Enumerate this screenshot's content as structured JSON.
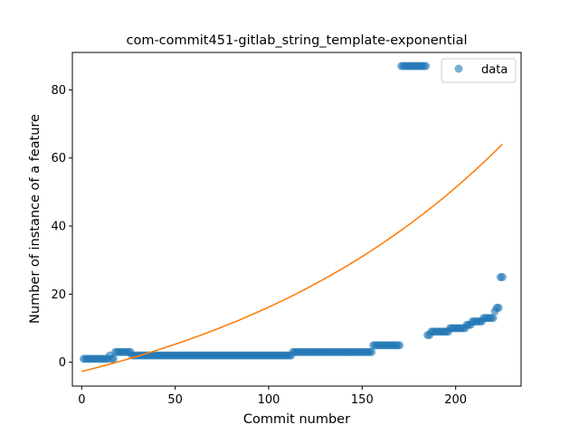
{
  "chart_data": {
    "type": "scatter",
    "title": "com-commit451-gitlab_string_template-exponential",
    "xlabel": "Commit number",
    "ylabel": "Number of instance of a feature",
    "xlim": [
      -5,
      235
    ],
    "ylim": [
      -7,
      91
    ],
    "xticks": [
      0,
      50,
      100,
      150,
      200
    ],
    "yticks": [
      0,
      20,
      40,
      60,
      80
    ],
    "grid": false,
    "legend": {
      "position": "top-right",
      "entries": [
        "data"
      ]
    },
    "colors": {
      "data": "#1f77b4",
      "fit": "#ff7f0e"
    },
    "series": [
      {
        "name": "data",
        "kind": "scatter",
        "segments": [
          {
            "x_from": 1,
            "x_to": 14,
            "y": 1
          },
          {
            "x_from": 15,
            "x_to": 15,
            "y": 2
          },
          {
            "x_from": 16,
            "x_to": 17,
            "y": 1
          },
          {
            "x_from": 18,
            "x_to": 26,
            "y": 3
          },
          {
            "x_from": 27,
            "x_to": 112,
            "y": 2
          },
          {
            "x_from": 113,
            "x_to": 155,
            "y": 3
          },
          {
            "x_from": 156,
            "x_to": 170,
            "y": 5
          },
          {
            "x_from": 171,
            "x_to": 184,
            "y": 87
          },
          {
            "x_from": 185,
            "x_to": 186,
            "y": 8
          },
          {
            "x_from": 187,
            "x_to": 196,
            "y": 9
          },
          {
            "x_from": 197,
            "x_to": 205,
            "y": 10
          },
          {
            "x_from": 206,
            "x_to": 208,
            "y": 11
          },
          {
            "x_from": 209,
            "x_to": 214,
            "y": 12
          },
          {
            "x_from": 215,
            "x_to": 217,
            "y": 13
          },
          {
            "x_from": 218,
            "x_to": 220,
            "y": 13
          },
          {
            "x_from": 221,
            "x_to": 221,
            "y": 15
          },
          {
            "x_from": 222,
            "x_to": 223,
            "y": 16
          },
          {
            "x_from": 224,
            "x_to": 225,
            "y": 25
          }
        ]
      },
      {
        "kind": "line",
        "model": "exponential",
        "a": 22.0,
        "b": 0.0062,
        "c": -24.7,
        "x_from": 0,
        "x_to": 225
      }
    ]
  }
}
